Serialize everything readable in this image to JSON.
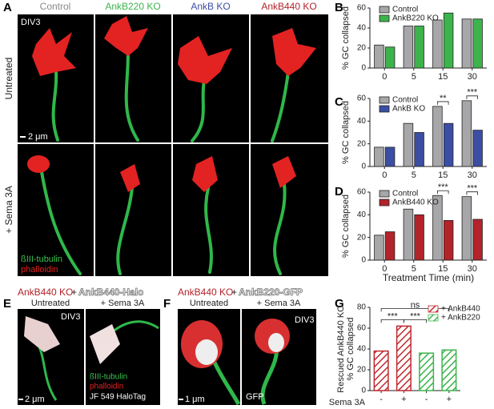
{
  "panels": {
    "A": {
      "label": "A",
      "columns": [
        "Control",
        "AnkB220 KO",
        "AnkB KO",
        "AnkB440 KO"
      ],
      "rows": [
        "Untreated",
        "+ Sema 3A"
      ],
      "div": "DIV3",
      "scale": "2 μm",
      "stains": [
        "ßIII-tubulin",
        "phalloidin"
      ]
    },
    "E": {
      "label": "E",
      "title": [
        "AnkB440 KO",
        "+",
        "AnkB440-Halo"
      ],
      "conditions": [
        "Untreated",
        "+ Sema 3A"
      ],
      "div": "DIV3",
      "scale": "2 μm",
      "stains": [
        "ßIII-tubulin",
        "phalloidin",
        "JF 549 HaloTag"
      ]
    },
    "F": {
      "label": "F",
      "title": [
        "AnkB440 KO",
        "+",
        "AnkB220-GFP"
      ],
      "conditions": [
        "Untreated",
        "+ Sema 3A"
      ],
      "div": "DIV3",
      "scale": "1 μm",
      "stains": [
        "GFP"
      ]
    }
  },
  "chart_data": [
    {
      "type": "bar",
      "panel_label": "B",
      "ylabel": [
        "% GC collapsed"
      ],
      "categories": [
        "0",
        "5",
        "15",
        "30"
      ],
      "series": [
        {
          "name": "Control",
          "color": "#a7a7a9",
          "values": [
            23,
            42,
            48,
            49
          ]
        },
        {
          "name": "AnkB220 KO",
          "color": "#3cb44b",
          "values": [
            21,
            42,
            55,
            49
          ]
        }
      ],
      "ylim": [
        0,
        60
      ],
      "yticks": [
        0,
        20,
        40,
        60
      ],
      "legend": "upper left",
      "annotations": []
    },
    {
      "type": "bar",
      "panel_label": "C",
      "ylabel": [
        "% GC collapsed"
      ],
      "categories": [
        "0",
        "5",
        "15",
        "30"
      ],
      "series": [
        {
          "name": "Control",
          "color": "#a7a7a9",
          "values": [
            17,
            38,
            53,
            58
          ]
        },
        {
          "name": "AnkB KO",
          "color": "#3b4ea3",
          "values": [
            17,
            30,
            38,
            32
          ]
        }
      ],
      "ylim": [
        0,
        60
      ],
      "yticks": [
        0,
        20,
        40,
        60
      ],
      "legend": "upper left",
      "annotations": [
        {
          "text": "**",
          "span": [
            2,
            2
          ]
        },
        {
          "text": "***",
          "span": [
            3,
            3
          ]
        }
      ]
    },
    {
      "type": "bar",
      "panel_label": "D",
      "ylabel": [
        "% GC collapsed"
      ],
      "xlabel": "Treatment Time (min)",
      "categories": [
        "0",
        "5",
        "15",
        "30"
      ],
      "series": [
        {
          "name": "Control",
          "color": "#a7a7a9",
          "values": [
            22,
            45,
            57,
            56
          ]
        },
        {
          "name": "AnkB440 KO",
          "color": "#b2232a",
          "values": [
            25,
            40,
            35,
            36
          ]
        }
      ],
      "ylim": [
        0,
        60
      ],
      "yticks": [
        0,
        20,
        40,
        60
      ],
      "legend": "upper left",
      "annotations": [
        {
          "text": "***",
          "span": [
            2,
            2
          ]
        },
        {
          "text": "***",
          "span": [
            3,
            3
          ]
        }
      ]
    },
    {
      "type": "bar",
      "panel_label": "G",
      "ylabel": [
        "Rescued AnkB440 KO",
        "% GC collapsed"
      ],
      "xlabel": "Sema 3A",
      "categories": [
        "-",
        "+",
        "-",
        "+"
      ],
      "hatch": true,
      "series": [
        {
          "name": "+ AnkB440",
          "color": "#c0272d",
          "values": [
            38,
            62,
            null,
            null
          ]
        },
        {
          "name": "+ AnkB220",
          "color": "#3cb44b",
          "values": [
            null,
            null,
            36,
            39
          ]
        }
      ],
      "ylim": [
        0,
        80
      ],
      "yticks": [
        0,
        20,
        40,
        60,
        80
      ],
      "legend": "upper right",
      "annotations": [
        {
          "text": "***",
          "span": [
            0,
            1
          ]
        },
        {
          "text": "***",
          "span": [
            1,
            2
          ]
        },
        {
          "text": "ns",
          "span": [
            0,
            3
          ]
        }
      ]
    }
  ]
}
